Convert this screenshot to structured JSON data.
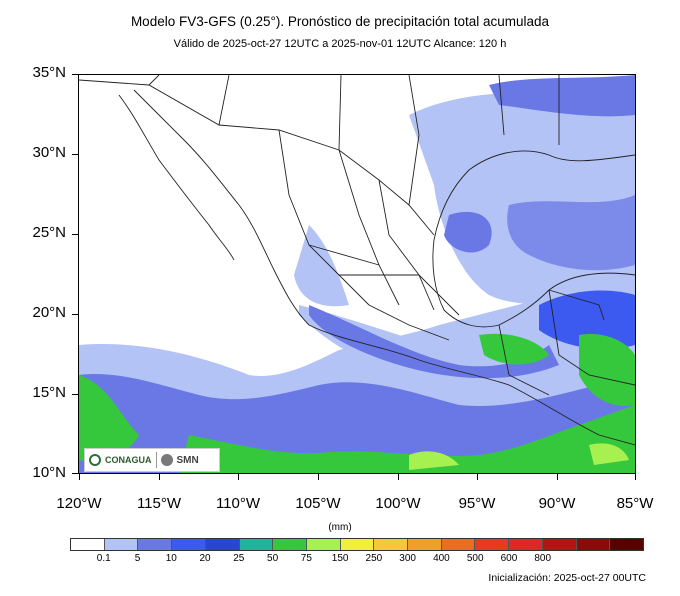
{
  "title": "Modelo FV3-GFS (0.25°). Pronóstico de precipitación total acumulada",
  "subtitle": "Válido de 2025-oct-27 12UTC a 2025-nov-01 12UTC    Alcance: 120 h",
  "map": {
    "lat_labels": [
      "35°N",
      "30°N",
      "25°N",
      "20°N",
      "15°N",
      "10°N"
    ],
    "lon_labels": [
      "120°W",
      "115°W",
      "110°W",
      "105°W",
      "100°W",
      "95°W",
      "90°W",
      "85°W"
    ],
    "extent": {
      "lon": [
        -120,
        -85
      ],
      "lat": [
        10,
        35
      ]
    }
  },
  "colorbar": {
    "units": "(mm)",
    "colors": [
      "#ffffff",
      "#b4c3f5",
      "#6a78e6",
      "#3c5af0",
      "#2846d2",
      "#20b49a",
      "#36c83c",
      "#a6f050",
      "#f0f03c",
      "#f5c83c",
      "#f0a028",
      "#eb6e1e",
      "#e63c1e",
      "#dc2828",
      "#b41414",
      "#8c0a0a",
      "#5a0000"
    ],
    "labels": [
      "0.1",
      "5",
      "10",
      "20",
      "25",
      "50",
      "75",
      "150",
      "250",
      "300",
      "400",
      "500",
      "600",
      "800"
    ]
  },
  "logos": {
    "conagua": "CONAGUA",
    "smn": "SMN"
  },
  "init": "Inicialización: 2025-oct-27 00UTC"
}
